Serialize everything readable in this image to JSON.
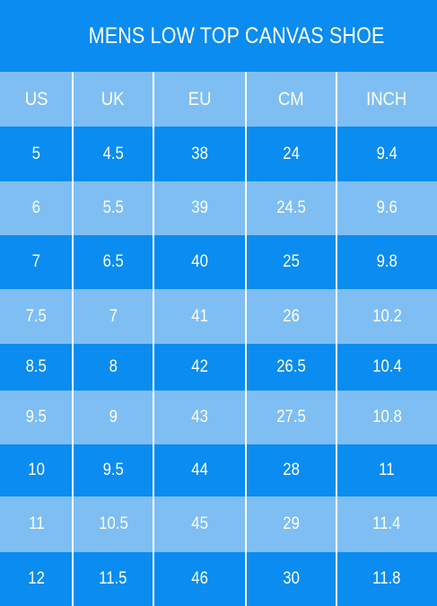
{
  "title": "MENS LOW TOP CANVAS SHOE",
  "columns": [
    "US",
    "UK",
    "EU",
    "CM",
    "INCH"
  ],
  "rows": [
    [
      "5",
      "4.5",
      "38",
      "24",
      "9.4"
    ],
    [
      "6",
      "5.5",
      "39",
      "24.5",
      "9.6"
    ],
    [
      "7",
      "6.5",
      "40",
      "25",
      "9.8"
    ],
    [
      "7.5",
      "7",
      "41",
      "26",
      "10.2"
    ],
    [
      "8.5",
      "8",
      "42",
      "26.5",
      "10.4"
    ],
    [
      "9.5",
      "9",
      "43",
      "27.5",
      "10.8"
    ],
    [
      "10",
      "9.5",
      "44",
      "28",
      "11"
    ],
    [
      "11",
      "10.5",
      "45",
      "29",
      "11.4"
    ],
    [
      "12",
      "11.5",
      "46",
      "30",
      "11.8"
    ]
  ],
  "colors": {
    "dark_band": "#0a8cf0",
    "light_band": "#7ebef3",
    "text": "#ffffff"
  }
}
